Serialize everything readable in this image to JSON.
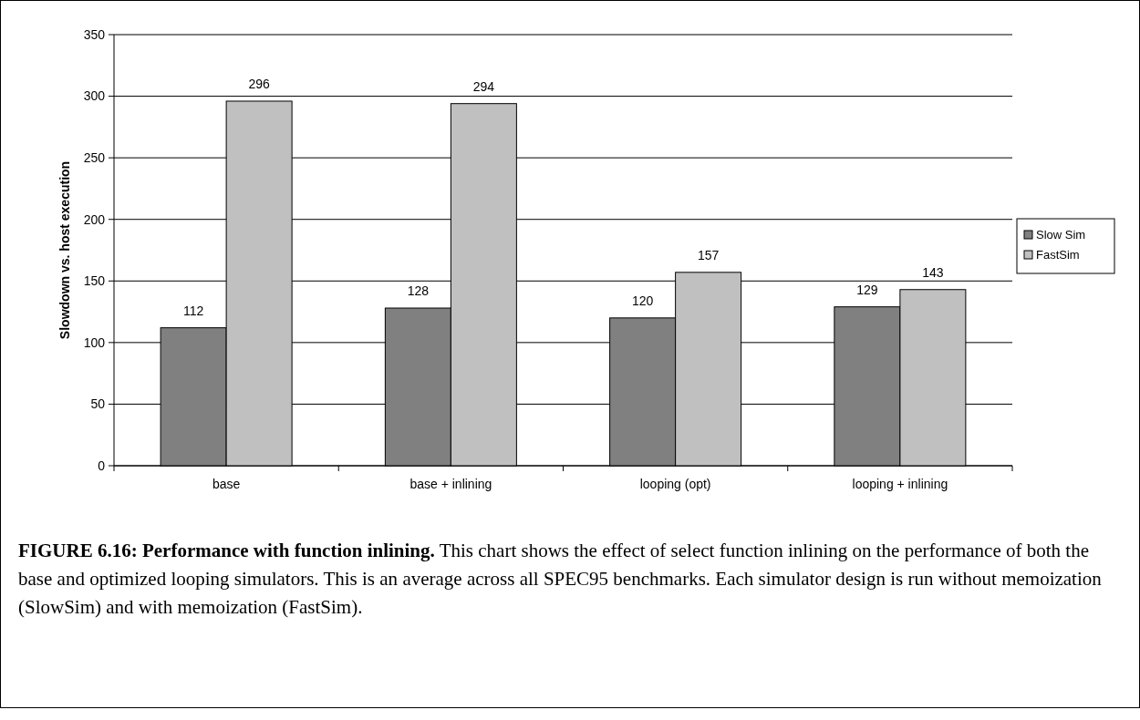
{
  "chart_data": {
    "type": "bar",
    "title": "FIGURE 6.16: Performance with function inlining.",
    "ylabel": "Slowdown vs. host execution",
    "categories": [
      "base",
      "base + inlining",
      "looping (opt)",
      "looping + inlining"
    ],
    "series": [
      {
        "name": "Slow Sim",
        "color": "#808080",
        "values": [
          112,
          128,
          120,
          129
        ]
      },
      {
        "name": "FastSim",
        "color": "#c0c0c0",
        "values": [
          296,
          294,
          157,
          143
        ]
      }
    ],
    "ylim": [
      0,
      350
    ],
    "yticks": [
      0,
      50,
      100,
      150,
      200,
      250,
      300,
      350
    ],
    "grid": "y",
    "legend": "right",
    "data_labels": true,
    "annotations": [
      "This chart shows the effect of select function inlining on the performance of both the base and optimized looping simulators. This is an average across all SPEC95 benchmarks. Each simulator design is run without memoization (SlowSim) and with memoization (FastSim)."
    ]
  }
}
